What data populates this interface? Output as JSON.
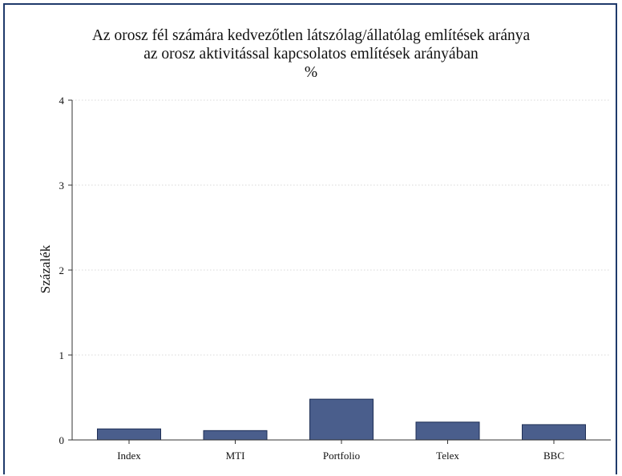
{
  "chart_data": {
    "type": "bar",
    "title_lines": [
      "Az orosz fél számára kedvezőtlen látszólag/állatólag említések aránya",
      "az orosz aktivitással kapcsolatos említések arányában",
      "%"
    ],
    "ylabel": "Százalék",
    "xlabel": "",
    "categories": [
      "Index",
      "MTI",
      "Portfolio",
      "Telex",
      "BBC"
    ],
    "values": [
      0.13,
      0.11,
      0.48,
      0.21,
      0.18
    ],
    "ylim": [
      0,
      4
    ],
    "yticks": [
      0,
      1,
      2,
      3,
      4
    ],
    "grid": true,
    "colors": {
      "bar": "#4a5e8c",
      "bar_stroke": "#1e2e55",
      "axis": "#333333",
      "frame": "#1f3a6b",
      "grid": "#d8d8d8"
    }
  }
}
